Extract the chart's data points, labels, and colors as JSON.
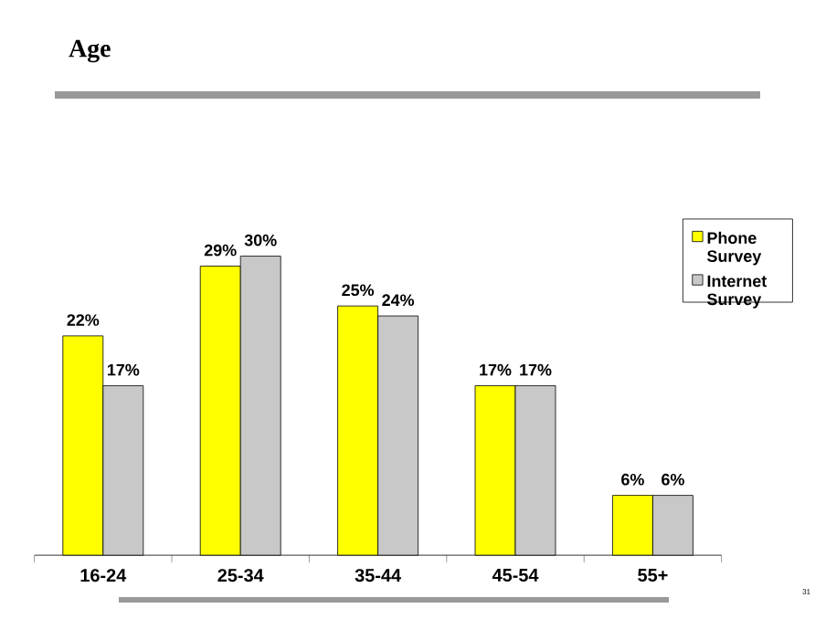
{
  "chart_data": {
    "type": "bar",
    "title": "Age",
    "categories": [
      "16-24",
      "25-34",
      "35-44",
      "45-54",
      "55+"
    ],
    "series": [
      {
        "name": "Phone Survey",
        "color": "#ffff00",
        "values": [
          22,
          29,
          25,
          17,
          6
        ],
        "value_labels": [
          "22%",
          "29%",
          "25%",
          "17%",
          "6%"
        ]
      },
      {
        "name": "Internet Survey",
        "color": "#c8c8c8",
        "values": [
          17,
          30,
          24,
          17,
          6
        ],
        "value_labels": [
          "17%",
          "30%",
          "24%",
          "17%",
          "6%"
        ]
      }
    ],
    "legend": "top right",
    "annotations": [
      "31"
    ]
  }
}
